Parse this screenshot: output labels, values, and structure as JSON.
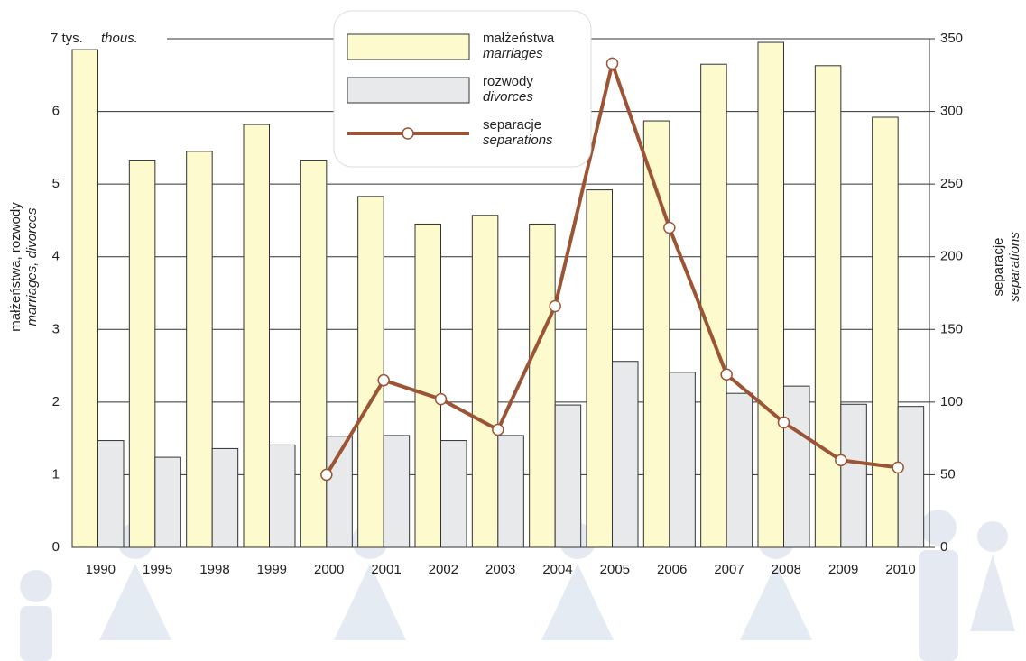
{
  "chart_data": {
    "type": "bar-line",
    "categories": [
      "1990",
      "1995",
      "1998",
      "1999",
      "2000",
      "2001",
      "2002",
      "2003",
      "2004",
      "2005",
      "2006",
      "2007",
      "2008",
      "2009",
      "2010"
    ],
    "series": [
      {
        "name": "małżeństwa",
        "name_en": "marriages",
        "color": "#fdfacd",
        "type": "bar",
        "values": [
          6.85,
          5.33,
          5.45,
          5.82,
          5.33,
          4.83,
          4.45,
          4.57,
          4.45,
          4.92,
          5.87,
          6.65,
          6.95,
          6.63,
          5.92
        ]
      },
      {
        "name": "rozwody",
        "name_en": "divorces",
        "color": "#e8e9eb",
        "type": "bar",
        "values": [
          1.47,
          1.24,
          1.36,
          1.41,
          1.53,
          1.54,
          1.47,
          1.54,
          1.96,
          2.56,
          2.41,
          2.12,
          2.22,
          1.97,
          1.94
        ]
      },
      {
        "name": "separacje",
        "name_en": "separations",
        "color": "#9b5535",
        "type": "line",
        "axis": "y2",
        "values": [
          null,
          null,
          null,
          null,
          50,
          115,
          102,
          81,
          166,
          333,
          220,
          119,
          86,
          60,
          55
        ]
      }
    ],
    "ylabel": "małżeństwa, rozwody",
    "ylabel_en": "marriages, divorces",
    "y2label": "separacje",
    "y2label_en": "separations",
    "y_unit_en": "thous.",
    "ylim": [
      0,
      7
    ],
    "yticks": [
      0,
      1,
      2,
      3,
      4,
      5,
      6,
      {
        "value": 7,
        "label": "7 tys."
      }
    ],
    "y2lim": [
      0,
      350
    ],
    "y2ticks": [
      0,
      50,
      100,
      150,
      200,
      250,
      300,
      350
    ],
    "grid": true
  }
}
